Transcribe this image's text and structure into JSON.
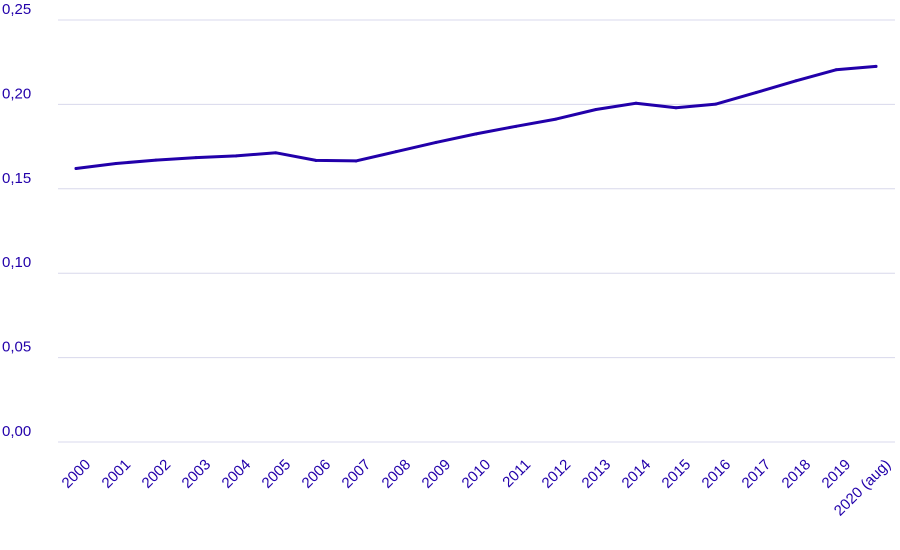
{
  "chart_data": {
    "type": "line",
    "title": "",
    "xlabel": "",
    "ylabel": "",
    "categories": [
      "2000",
      "2001",
      "2002",
      "2003",
      "2004",
      "2005",
      "2006",
      "2007",
      "2008",
      "2009",
      "2010",
      "2011",
      "2012",
      "2013",
      "2014",
      "2015",
      "2016",
      "2017",
      "2018",
      "2019",
      "2020 (aug)"
    ],
    "series": [
      {
        "values": [
          0.162,
          0.165,
          0.167,
          0.1685,
          0.1695,
          0.1713,
          0.1668,
          0.1665,
          0.172,
          0.1775,
          0.1825,
          0.187,
          0.1913,
          0.197,
          0.2007,
          0.198,
          0.2002,
          0.207,
          0.214,
          0.2205,
          0.2225
        ]
      }
    ],
    "ylim": [
      0,
      0.25
    ],
    "yticks": [
      "0,00",
      "0,05",
      "0,10",
      "0,15",
      "0,20",
      "0,25"
    ],
    "grid": true,
    "colors": {
      "line": "#2200aa",
      "text": "#2200aa",
      "grid": "#d8d8ec"
    }
  }
}
